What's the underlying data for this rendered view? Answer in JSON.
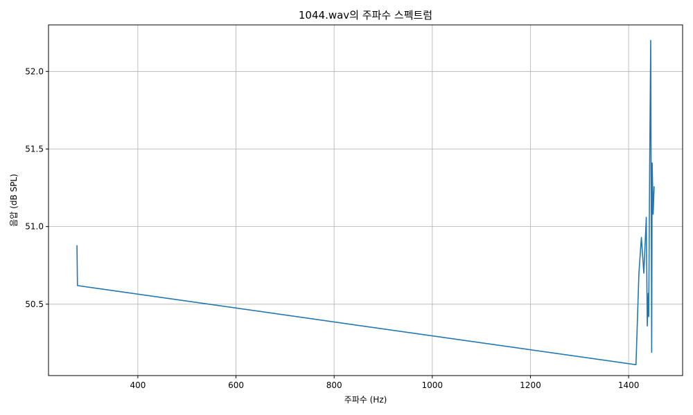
{
  "chart_data": {
    "type": "line",
    "title": "1044.wav의 주파수 스펙트럼",
    "xlabel": "주파수 (Hz)",
    "ylabel": "음압 (dB SPL)",
    "xlim": [
      218,
      1510
    ],
    "ylim": [
      50.04,
      52.3
    ],
    "grid": true,
    "xticks": [
      400,
      600,
      800,
      1000,
      1200,
      1400
    ],
    "xtick_labels": [
      "400",
      "600",
      "800",
      "1000",
      "1200",
      "1400"
    ],
    "yticks": [
      50.5,
      51.0,
      51.5,
      52.0
    ],
    "ytick_labels": [
      "50.5",
      "51.0",
      "51.5",
      "52.0"
    ],
    "line_color": "#1f77b4",
    "series": [
      {
        "x": [
          276,
          277,
          1415,
          1421,
          1426,
          1431,
          1436,
          1438,
          1440,
          1441,
          1443,
          1445,
          1447,
          1448,
          1450,
          1452
        ],
        "y": [
          50.88,
          50.62,
          50.11,
          50.7,
          50.93,
          50.7,
          51.06,
          50.36,
          50.57,
          50.42,
          51.44,
          52.2,
          50.19,
          51.41,
          51.08,
          51.26
        ]
      }
    ]
  }
}
